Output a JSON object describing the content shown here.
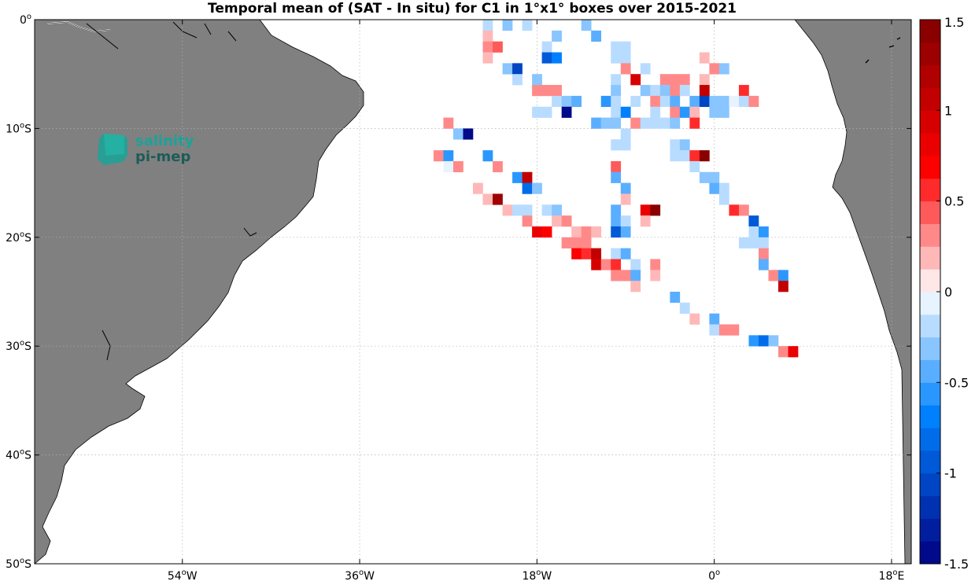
{
  "chart_data": {
    "type": "heatmap",
    "title": "Temporal mean of (SAT - In situ) for C1 in 1°x1° boxes over 2015-2021",
    "x_ticks": [
      {
        "value": -54,
        "label": "54°W"
      },
      {
        "value": -36,
        "label": "36°W"
      },
      {
        "value": -18,
        "label": "18°W"
      },
      {
        "value": 0,
        "label": "0°"
      },
      {
        "value": 18,
        "label": "18°E"
      }
    ],
    "y_ticks": [
      {
        "value": 0,
        "label": "0°"
      },
      {
        "value": -10,
        "label": "10°S"
      },
      {
        "value": -20,
        "label": "20°S"
      },
      {
        "value": -30,
        "label": "30°S"
      },
      {
        "value": -40,
        "label": "40°S"
      },
      {
        "value": -50,
        "label": "50°S"
      }
    ],
    "xlim": [
      -69,
      20
    ],
    "ylim": [
      -50,
      0
    ],
    "grid": true,
    "colorbar": {
      "min": -1.5,
      "max": 1.5,
      "ticks": [
        {
          "value": 1.5,
          "label": "1.5"
        },
        {
          "value": 1,
          "label": "1"
        },
        {
          "value": 0.5,
          "label": "0.5"
        },
        {
          "value": 0,
          "label": "0"
        },
        {
          "value": -0.5,
          "label": "-0.5"
        },
        {
          "value": -1,
          "label": "-1"
        },
        {
          "value": -1.5,
          "label": "-1.5"
        }
      ]
    },
    "cells": [
      {
        "lon": -23,
        "lat": -0.5,
        "v": -0.2
      },
      {
        "lon": -21,
        "lat": -0.5,
        "v": -0.3
      },
      {
        "lon": -19,
        "lat": -0.5,
        "v": -0.2
      },
      {
        "lon": -13,
        "lat": -0.5,
        "v": -0.3
      },
      {
        "lon": -23,
        "lat": -1.5,
        "v": 0.2
      },
      {
        "lon": -16,
        "lat": -1.5,
        "v": -0.3
      },
      {
        "lon": -12,
        "lat": -1.5,
        "v": -0.4
      },
      {
        "lon": -23,
        "lat": -2.5,
        "v": 0.25
      },
      {
        "lon": -22,
        "lat": -2.5,
        "v": 0.45
      },
      {
        "lon": -17,
        "lat": -2.5,
        "v": -0.2
      },
      {
        "lon": -10,
        "lat": -2.5,
        "v": -0.15
      },
      {
        "lon": -9,
        "lat": -2.5,
        "v": -0.15
      },
      {
        "lon": -23,
        "lat": -3.5,
        "v": 0.15
      },
      {
        "lon": -17,
        "lat": -3.5,
        "v": -0.9
      },
      {
        "lon": -16,
        "lat": -3.5,
        "v": -0.7
      },
      {
        "lon": -10,
        "lat": -3.5,
        "v": -0.2
      },
      {
        "lon": -9,
        "lat": -3.5,
        "v": -0.2
      },
      {
        "lon": -1,
        "lat": -3.5,
        "v": 0.15
      },
      {
        "lon": -21,
        "lat": -4.5,
        "v": -0.3
      },
      {
        "lon": -20,
        "lat": -4.5,
        "v": -1.1
      },
      {
        "lon": -9,
        "lat": -4.5,
        "v": 0.25
      },
      {
        "lon": -7,
        "lat": -4.5,
        "v": -0.2
      },
      {
        "lon": 0,
        "lat": -4.5,
        "v": 0.3
      },
      {
        "lon": 1,
        "lat": -4.5,
        "v": -0.3
      },
      {
        "lon": -20,
        "lat": -5.5,
        "v": -0.2
      },
      {
        "lon": -18,
        "lat": -5.5,
        "v": -0.3
      },
      {
        "lon": -10,
        "lat": -5.5,
        "v": -0.2
      },
      {
        "lon": -8,
        "lat": -5.5,
        "v": 0.9
      },
      {
        "lon": -5,
        "lat": -5.5,
        "v": 0.3
      },
      {
        "lon": -4,
        "lat": -5.5,
        "v": 0.3
      },
      {
        "lon": -3,
        "lat": -5.5,
        "v": 0.3
      },
      {
        "lon": -1,
        "lat": -5.5,
        "v": 0.2
      },
      {
        "lon": -18,
        "lat": -6.5,
        "v": 0.3
      },
      {
        "lon": -17,
        "lat": -6.5,
        "v": 0.25
      },
      {
        "lon": -16,
        "lat": -6.5,
        "v": 0.25
      },
      {
        "lon": -10,
        "lat": -6.5,
        "v": -0.3
      },
      {
        "lon": -7,
        "lat": -6.5,
        "v": -0.3
      },
      {
        "lon": -6,
        "lat": -6.5,
        "v": -0.15
      },
      {
        "lon": -5,
        "lat": -6.5,
        "v": -0.3
      },
      {
        "lon": -4,
        "lat": -6.5,
        "v": 0.25
      },
      {
        "lon": -3,
        "lat": -6.5,
        "v": -0.2
      },
      {
        "lon": -1,
        "lat": -6.5,
        "v": 1.0
      },
      {
        "lon": 3,
        "lat": -6.5,
        "v": 0.5
      },
      {
        "lon": -16,
        "lat": -7.5,
        "v": -0.15
      },
      {
        "lon": -15,
        "lat": -7.5,
        "v": -0.3
      },
      {
        "lon": -14,
        "lat": -7.5,
        "v": -0.4
      },
      {
        "lon": -11,
        "lat": -7.5,
        "v": -0.6
      },
      {
        "lon": -10,
        "lat": -7.5,
        "v": -0.2
      },
      {
        "lon": -8,
        "lat": -7.5,
        "v": -0.2
      },
      {
        "lon": -6,
        "lat": -7.5,
        "v": 0.3
      },
      {
        "lon": -5,
        "lat": -7.5,
        "v": -0.15
      },
      {
        "lon": -4,
        "lat": -7.5,
        "v": -0.5
      },
      {
        "lon": -2,
        "lat": -7.5,
        "v": -0.4
      },
      {
        "lon": -1,
        "lat": -7.5,
        "v": -1.1
      },
      {
        "lon": 0,
        "lat": -7.5,
        "v": -0.3
      },
      {
        "lon": 1,
        "lat": -7.5,
        "v": -0.3
      },
      {
        "lon": 2,
        "lat": -7.5,
        "v": -0.1
      },
      {
        "lon": 3,
        "lat": -7.5,
        "v": -0.2
      },
      {
        "lon": 4,
        "lat": -7.5,
        "v": 0.3
      },
      {
        "lon": -18,
        "lat": -8.5,
        "v": -0.25
      },
      {
        "lon": -17,
        "lat": -8.5,
        "v": -0.2
      },
      {
        "lon": -15,
        "lat": -8.5,
        "v": -1.5
      },
      {
        "lon": -10,
        "lat": -8.5,
        "v": -0.2
      },
      {
        "lon": -9,
        "lat": -8.5,
        "v": -0.7
      },
      {
        "lon": -6,
        "lat": -8.5,
        "v": -0.15
      },
      {
        "lon": -4,
        "lat": -8.5,
        "v": 0.3
      },
      {
        "lon": -3,
        "lat": -8.5,
        "v": -0.6
      },
      {
        "lon": -2,
        "lat": -8.5,
        "v": 0.2
      },
      {
        "lon": 0,
        "lat": -8.5,
        "v": -0.3
      },
      {
        "lon": 1,
        "lat": -8.5,
        "v": -0.3
      },
      {
        "lon": -27,
        "lat": -9.5,
        "v": 0.3
      },
      {
        "lon": -12,
        "lat": -9.5,
        "v": -0.4
      },
      {
        "lon": -11,
        "lat": -9.5,
        "v": -0.3
      },
      {
        "lon": -10,
        "lat": -9.5,
        "v": -0.3
      },
      {
        "lon": -8,
        "lat": -9.5,
        "v": 0.3
      },
      {
        "lon": -7,
        "lat": -9.5,
        "v": -0.2
      },
      {
        "lon": -6,
        "lat": -9.5,
        "v": -0.2
      },
      {
        "lon": -5,
        "lat": -9.5,
        "v": -0.2
      },
      {
        "lon": -4,
        "lat": -9.5,
        "v": -0.3
      },
      {
        "lon": -2,
        "lat": -9.5,
        "v": 0.5
      },
      {
        "lon": -26,
        "lat": -10.5,
        "v": -0.3
      },
      {
        "lon": -25,
        "lat": -10.5,
        "v": -1.5
      },
      {
        "lon": -9,
        "lat": -10.5,
        "v": -0.15
      },
      {
        "lon": -10,
        "lat": -11.5,
        "v": -0.2
      },
      {
        "lon": -9,
        "lat": -11.5,
        "v": -0.15
      },
      {
        "lon": -4,
        "lat": -11.5,
        "v": -0.2
      },
      {
        "lon": -3,
        "lat": -11.5,
        "v": -0.3
      },
      {
        "lon": -28,
        "lat": -12.5,
        "v": 0.3
      },
      {
        "lon": -27,
        "lat": -12.5,
        "v": -0.6
      },
      {
        "lon": -23,
        "lat": -12.5,
        "v": -0.6
      },
      {
        "lon": -4,
        "lat": -12.5,
        "v": -0.2
      },
      {
        "lon": -3,
        "lat": -12.5,
        "v": -0.2
      },
      {
        "lon": -2,
        "lat": -12.5,
        "v": 0.6
      },
      {
        "lon": -1,
        "lat": -12.5,
        "v": 1.4
      },
      {
        "lon": -27,
        "lat": -13.5,
        "v": -0.1
      },
      {
        "lon": -26,
        "lat": -13.5,
        "v": 0.3
      },
      {
        "lon": -22,
        "lat": -13.5,
        "v": 0.3
      },
      {
        "lon": -10,
        "lat": -13.5,
        "v": 0.4
      },
      {
        "lon": -2,
        "lat": -13.5,
        "v": -0.15
      },
      {
        "lon": -20,
        "lat": -14.5,
        "v": -0.6
      },
      {
        "lon": -19,
        "lat": -14.5,
        "v": 1.0
      },
      {
        "lon": -10,
        "lat": -14.5,
        "v": -0.5
      },
      {
        "lon": -1,
        "lat": -14.5,
        "v": -0.3
      },
      {
        "lon": 0,
        "lat": -14.5,
        "v": -0.3
      },
      {
        "lon": -24,
        "lat": -15.5,
        "v": 0.2
      },
      {
        "lon": -19,
        "lat": -15.5,
        "v": -0.8
      },
      {
        "lon": -18,
        "lat": -15.5,
        "v": -0.3
      },
      {
        "lon": -9,
        "lat": -15.5,
        "v": -0.4
      },
      {
        "lon": 0,
        "lat": -15.5,
        "v": -0.5
      },
      {
        "lon": 1,
        "lat": -15.5,
        "v": -0.2
      },
      {
        "lon": -23,
        "lat": -16.5,
        "v": 0.15
      },
      {
        "lon": -22,
        "lat": -16.5,
        "v": 1.3
      },
      {
        "lon": -9,
        "lat": -16.5,
        "v": 0.15
      },
      {
        "lon": 1,
        "lat": -16.5,
        "v": -0.15
      },
      {
        "lon": -21,
        "lat": -17.5,
        "v": 0.15
      },
      {
        "lon": -20,
        "lat": -17.5,
        "v": -0.15
      },
      {
        "lon": -19,
        "lat": -17.5,
        "v": -0.15
      },
      {
        "lon": -17,
        "lat": -17.5,
        "v": -0.2
      },
      {
        "lon": -16,
        "lat": -17.5,
        "v": -0.3
      },
      {
        "lon": -10,
        "lat": -17.5,
        "v": -0.4
      },
      {
        "lon": -7,
        "lat": -17.5,
        "v": 0.8
      },
      {
        "lon": -6,
        "lat": -17.5,
        "v": 1.4
      },
      {
        "lon": 2,
        "lat": -17.5,
        "v": 0.6
      },
      {
        "lon": 3,
        "lat": -17.5,
        "v": 0.3
      },
      {
        "lon": -19,
        "lat": -18.5,
        "v": 0.3
      },
      {
        "lon": -16,
        "lat": -18.5,
        "v": 0.2
      },
      {
        "lon": -15,
        "lat": -18.5,
        "v": 0.3
      },
      {
        "lon": -10,
        "lat": -18.5,
        "v": -0.4
      },
      {
        "lon": -9,
        "lat": -18.5,
        "v": -0.2
      },
      {
        "lon": -7,
        "lat": -18.5,
        "v": 0.2
      },
      {
        "lon": 4,
        "lat": -18.5,
        "v": -0.9
      },
      {
        "lon": -18,
        "lat": -19.5,
        "v": 0.8
      },
      {
        "lon": -17,
        "lat": -19.5,
        "v": 0.7
      },
      {
        "lon": -14,
        "lat": -19.5,
        "v": 0.2
      },
      {
        "lon": -13,
        "lat": -19.5,
        "v": 0.35
      },
      {
        "lon": -12,
        "lat": -19.5,
        "v": 0.2
      },
      {
        "lon": -10,
        "lat": -19.5,
        "v": -1.0
      },
      {
        "lon": -9,
        "lat": -19.5,
        "v": -0.5
      },
      {
        "lon": 4,
        "lat": -19.5,
        "v": -0.15
      },
      {
        "lon": 5,
        "lat": -19.5,
        "v": -0.6
      },
      {
        "lon": -15,
        "lat": -20.5,
        "v": 0.35
      },
      {
        "lon": -14,
        "lat": -20.5,
        "v": 0.3
      },
      {
        "lon": -13,
        "lat": -20.5,
        "v": 0.35
      },
      {
        "lon": 3,
        "lat": -20.5,
        "v": -0.2
      },
      {
        "lon": 4,
        "lat": -20.5,
        "v": -0.2
      },
      {
        "lon": 5,
        "lat": -20.5,
        "v": -0.2
      },
      {
        "lon": -14,
        "lat": -21.5,
        "v": 0.7
      },
      {
        "lon": -13,
        "lat": -21.5,
        "v": 0.5
      },
      {
        "lon": -12,
        "lat": -21.5,
        "v": 1.1
      },
      {
        "lon": -10,
        "lat": -21.5,
        "v": -0.2
      },
      {
        "lon": -9,
        "lat": -21.5,
        "v": -0.5
      },
      {
        "lon": 5,
        "lat": -21.5,
        "v": 0.35
      },
      {
        "lon": -12,
        "lat": -22.5,
        "v": 0.9
      },
      {
        "lon": -11,
        "lat": -22.5,
        "v": 0.3
      },
      {
        "lon": -10,
        "lat": -22.5,
        "v": 0.6
      },
      {
        "lon": -8,
        "lat": -22.5,
        "v": -0.15
      },
      {
        "lon": -6,
        "lat": -22.5,
        "v": 0.35
      },
      {
        "lon": 5,
        "lat": -22.5,
        "v": -0.5
      },
      {
        "lon": -10,
        "lat": -23.5,
        "v": 0.25
      },
      {
        "lon": -9,
        "lat": -23.5,
        "v": 0.3
      },
      {
        "lon": -8,
        "lat": -23.5,
        "v": -0.4
      },
      {
        "lon": -6,
        "lat": -23.5,
        "v": 0.2
      },
      {
        "lon": 6,
        "lat": -23.5,
        "v": 0.35
      },
      {
        "lon": 7,
        "lat": -23.5,
        "v": -0.6
      },
      {
        "lon": -8,
        "lat": -24.5,
        "v": 0.2
      },
      {
        "lon": 7,
        "lat": -24.5,
        "v": 1.0
      },
      {
        "lon": -4,
        "lat": -25.5,
        "v": -0.5
      },
      {
        "lon": -3,
        "lat": -26.5,
        "v": -0.15
      },
      {
        "lon": -2,
        "lat": -27.5,
        "v": 0.2
      },
      {
        "lon": 0,
        "lat": -27.5,
        "v": -0.4
      },
      {
        "lon": 0,
        "lat": -28.5,
        "v": -0.2
      },
      {
        "lon": 1,
        "lat": -28.5,
        "v": 0.3
      },
      {
        "lon": 2,
        "lat": -28.5,
        "v": 0.35
      },
      {
        "lon": 4,
        "lat": -29.5,
        "v": -0.6
      },
      {
        "lon": 5,
        "lat": -29.5,
        "v": -0.8
      },
      {
        "lon": 6,
        "lat": -29.5,
        "v": -0.3
      },
      {
        "lon": 7,
        "lat": -30.5,
        "v": 0.25
      },
      {
        "lon": 8,
        "lat": -30.5,
        "v": 0.8
      }
    ]
  },
  "logo": {
    "line1": "salinity",
    "line2": "pi-mep"
  },
  "colors": {
    "land": "#808080",
    "coast": "#000000",
    "ocean": "#ffffff",
    "logo_teal": "#1aa399",
    "logo_dark": "#1d5c58"
  }
}
